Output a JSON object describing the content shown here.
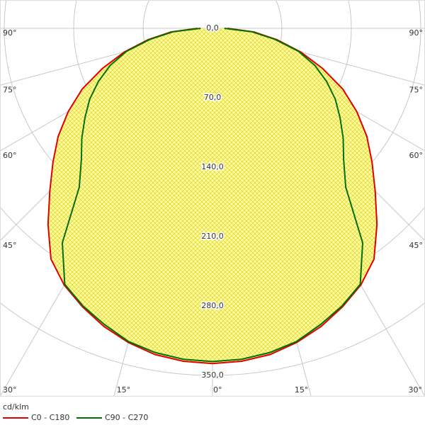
{
  "chart_data": {
    "type": "polar",
    "unit_label": "cd/klm",
    "x": [
      0,
      5,
      10,
      15,
      20,
      25,
      30,
      35,
      40,
      45,
      50,
      55,
      60,
      65,
      70,
      75,
      80,
      85,
      90
    ],
    "series": [
      {
        "name": "C0 - C180",
        "color": "#e00000",
        "fill": true,
        "values": [
          338,
          337,
          334,
          328,
          320,
          310,
          299,
          284,
          258,
          232,
          210,
          190,
          168,
          145,
          118,
          92,
          66,
          42,
          15
        ]
      },
      {
        "name": "C90 - C270",
        "color": "#007000",
        "fill": false,
        "values": [
          336,
          335,
          332,
          327,
          318,
          309,
          298,
          264,
          209,
          187,
          172,
          157,
          143,
          127,
          110,
          90,
          64,
          40,
          12
        ]
      }
    ],
    "rlim": [
      0,
      350
    ],
    "rticks": [
      {
        "value": 0,
        "label": "0,0"
      },
      {
        "value": 70,
        "label": "70,0"
      },
      {
        "value": 140,
        "label": "140,0"
      },
      {
        "value": 210,
        "label": "210,0"
      },
      {
        "value": 280,
        "label": "280,0"
      },
      {
        "value": 350,
        "label": "350,0"
      }
    ],
    "angle_ticks": [
      {
        "value": 90,
        "label": "90°"
      },
      {
        "value": 75,
        "label": "75°"
      },
      {
        "value": 60,
        "label": "60°"
      },
      {
        "value": 45,
        "label": "45°"
      },
      {
        "value": 30,
        "label": "30°"
      },
      {
        "value": 15,
        "label": "15°"
      },
      {
        "value": 0,
        "label": "0°"
      }
    ]
  }
}
